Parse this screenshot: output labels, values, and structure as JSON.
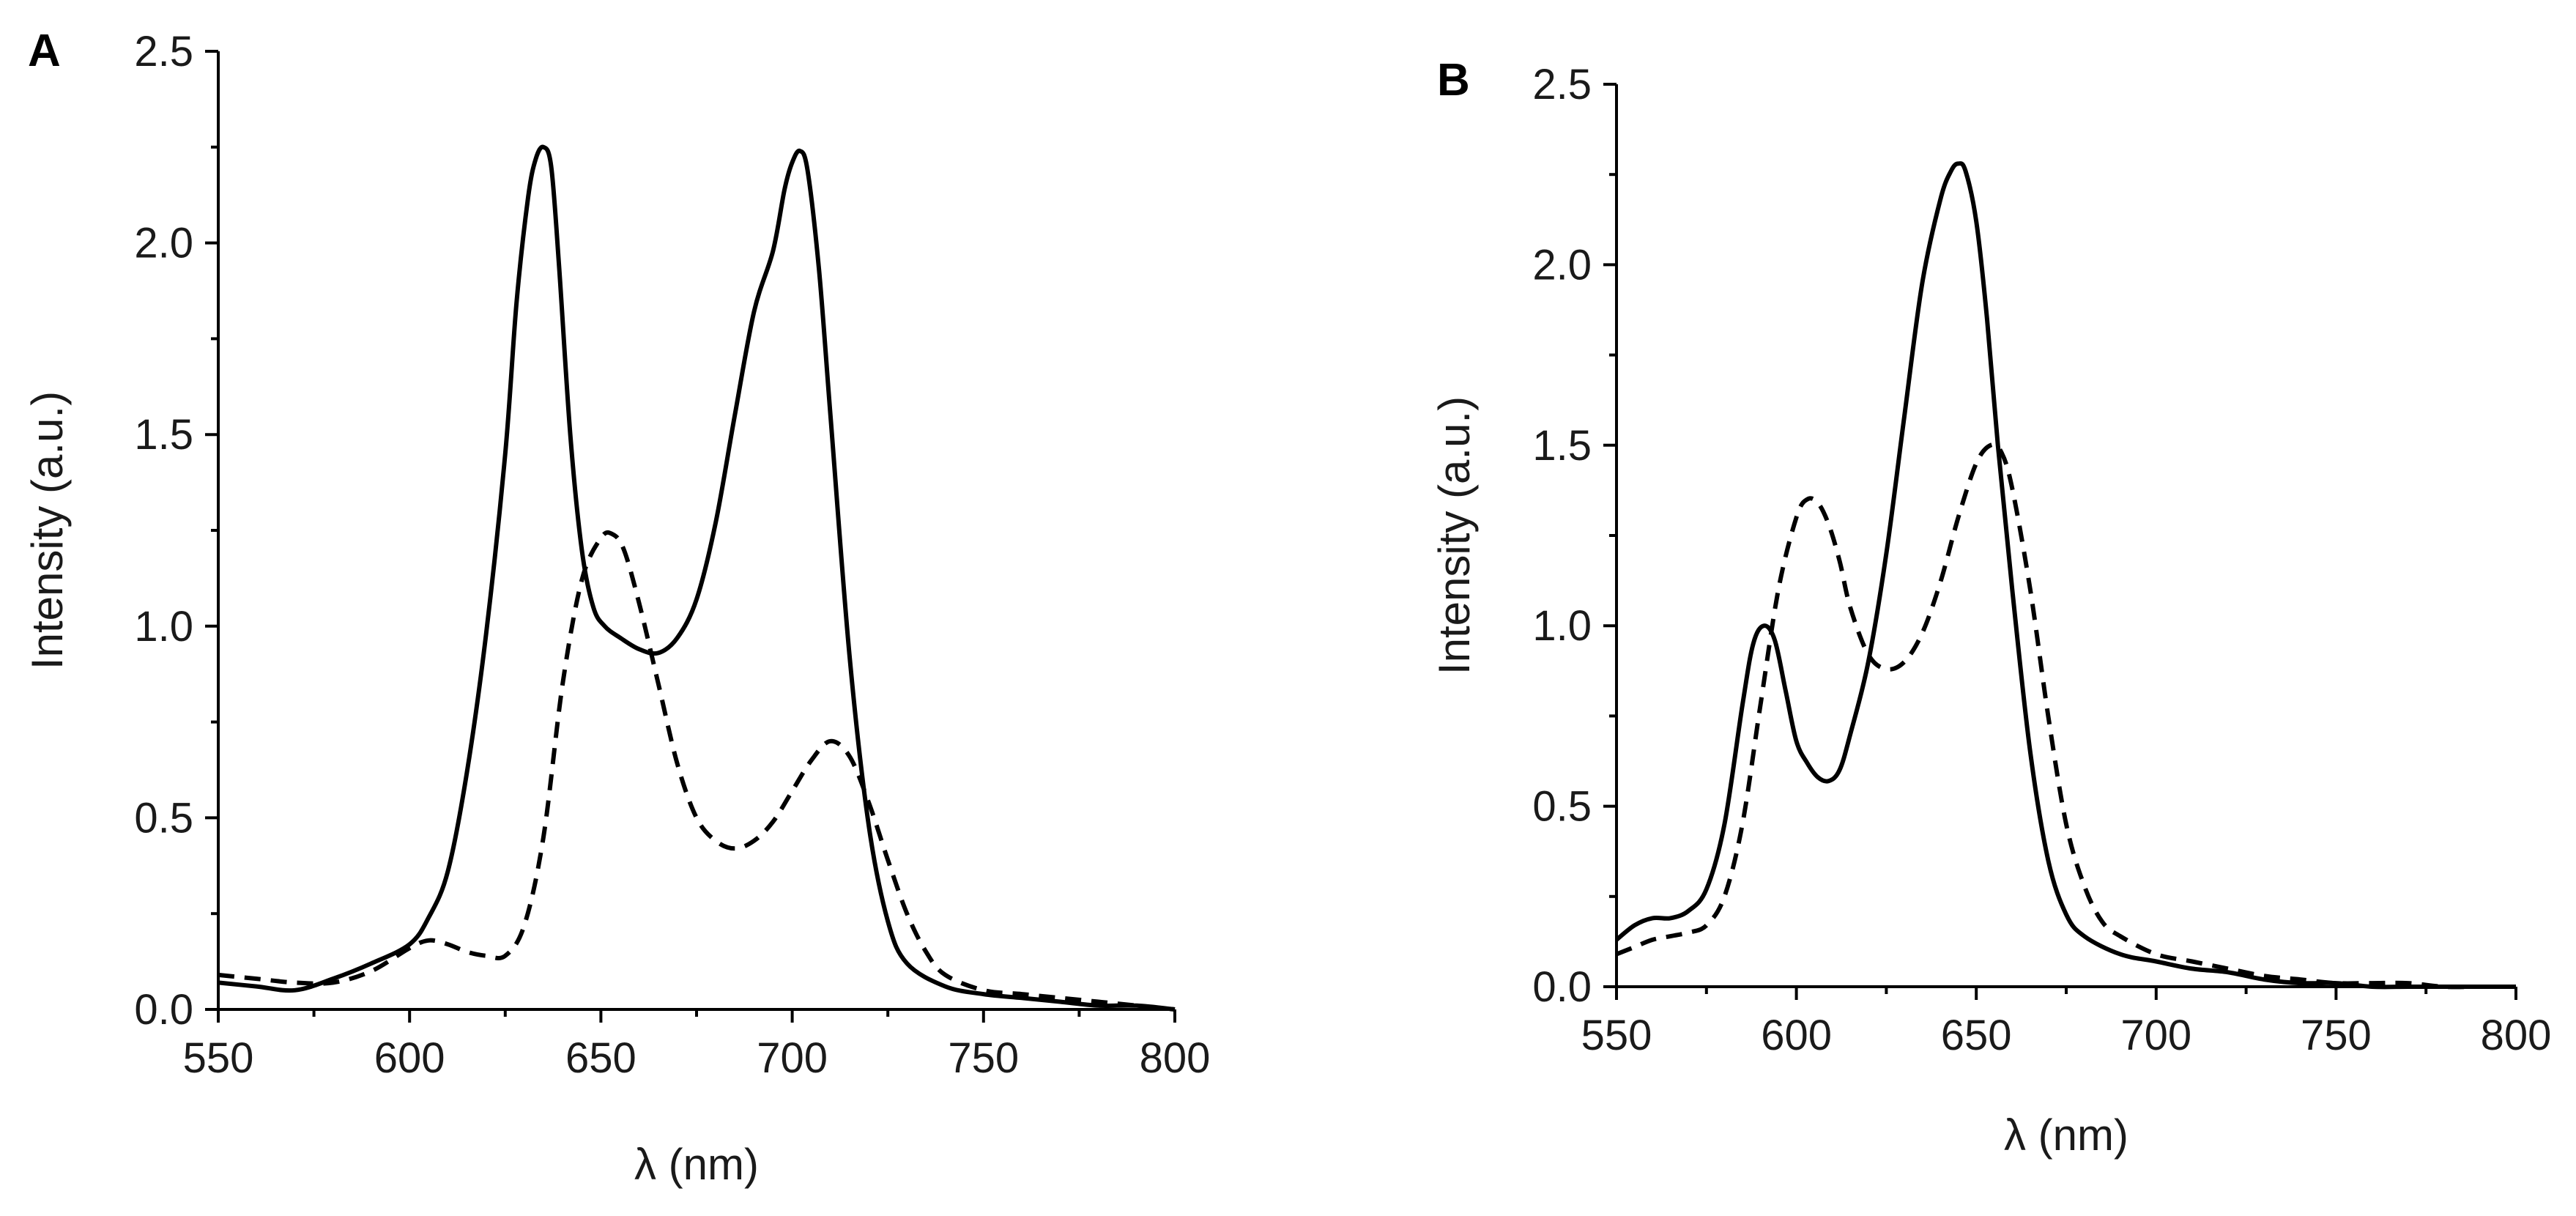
{
  "chart_data": [
    {
      "type": "line",
      "panel_label": "A",
      "xlabel": "λ (nm)",
      "ylabel": "Intensity (a.u.)",
      "xlim": [
        550,
        800
      ],
      "ylim": [
        0,
        2.5
      ],
      "x_ticks": [
        550,
        600,
        650,
        700,
        750,
        800
      ],
      "y_ticks": [
        "0.0",
        "0.5",
        "1.0",
        "1.5",
        "2.0",
        "2.5"
      ],
      "series": [
        {
          "name": "solid",
          "style": "solid",
          "x": [
            550,
            560,
            570,
            580,
            590,
            600,
            605,
            610,
            615,
            620,
            625,
            628,
            631,
            633,
            635,
            637,
            639,
            642,
            645,
            648,
            651,
            655,
            660,
            665,
            670,
            675,
            680,
            685,
            690,
            695,
            698,
            700,
            702,
            704,
            707,
            710,
            715,
            720,
            725,
            730,
            740,
            750,
            760,
            770,
            780,
            790,
            800
          ],
          "y": [
            0.07,
            0.06,
            0.05,
            0.08,
            0.12,
            0.17,
            0.24,
            0.36,
            0.62,
            0.98,
            1.45,
            1.85,
            2.12,
            2.22,
            2.25,
            2.2,
            1.95,
            1.5,
            1.2,
            1.05,
            1.0,
            0.97,
            0.94,
            0.93,
            0.97,
            1.07,
            1.27,
            1.55,
            1.82,
            1.98,
            2.14,
            2.21,
            2.24,
            2.19,
            1.93,
            1.55,
            0.92,
            0.48,
            0.23,
            0.12,
            0.06,
            0.04,
            0.03,
            0.02,
            0.01,
            0.01,
            0.0
          ]
        },
        {
          "name": "dashed",
          "style": "dashed",
          "x": [
            550,
            560,
            570,
            580,
            590,
            600,
            605,
            610,
            615,
            620,
            625,
            630,
            635,
            640,
            645,
            650,
            653,
            656,
            660,
            665,
            670,
            675,
            680,
            685,
            690,
            695,
            700,
            705,
            710,
            715,
            720,
            725,
            730,
            735,
            740,
            750,
            760,
            770,
            780,
            790,
            800
          ],
          "y": [
            0.09,
            0.08,
            0.07,
            0.07,
            0.1,
            0.16,
            0.18,
            0.17,
            0.15,
            0.14,
            0.14,
            0.22,
            0.45,
            0.85,
            1.12,
            1.23,
            1.24,
            1.2,
            1.06,
            0.85,
            0.64,
            0.5,
            0.44,
            0.42,
            0.44,
            0.49,
            0.57,
            0.65,
            0.7,
            0.66,
            0.54,
            0.39,
            0.25,
            0.15,
            0.09,
            0.05,
            0.04,
            0.03,
            0.02,
            0.01,
            0.0
          ]
        }
      ]
    },
    {
      "type": "line",
      "panel_label": "B",
      "xlabel": "λ (nm)",
      "ylabel": "Intensity (a.u.)",
      "xlim": [
        550,
        800
      ],
      "ylim": [
        0,
        2.5
      ],
      "x_ticks": [
        550,
        600,
        650,
        700,
        750,
        800
      ],
      "y_ticks": [
        "0.0",
        "0.5",
        "1.0",
        "1.5",
        "2.0",
        "2.5"
      ],
      "series": [
        {
          "name": "solid",
          "style": "solid",
          "x": [
            550,
            555,
            560,
            565,
            570,
            575,
            580,
            585,
            588,
            591,
            594,
            597,
            600,
            603,
            606,
            609,
            612,
            615,
            620,
            625,
            630,
            635,
            640,
            643,
            645,
            647,
            650,
            653,
            656,
            660,
            665,
            670,
            675,
            680,
            690,
            700,
            710,
            720,
            730,
            740,
            750,
            760,
            770,
            780,
            790,
            800
          ],
          "y": [
            0.13,
            0.17,
            0.19,
            0.19,
            0.21,
            0.27,
            0.45,
            0.78,
            0.95,
            1.0,
            0.96,
            0.82,
            0.68,
            0.62,
            0.58,
            0.57,
            0.6,
            0.7,
            0.9,
            1.2,
            1.58,
            1.95,
            2.18,
            2.26,
            2.28,
            2.26,
            2.12,
            1.85,
            1.5,
            1.1,
            0.65,
            0.35,
            0.2,
            0.14,
            0.09,
            0.07,
            0.05,
            0.04,
            0.02,
            0.01,
            0.01,
            0.0,
            0.0,
            0.0,
            0.0,
            0.0
          ]
        },
        {
          "name": "dashed",
          "style": "dashed",
          "x": [
            550,
            555,
            560,
            565,
            570,
            575,
            580,
            585,
            590,
            595,
            600,
            603,
            606,
            609,
            612,
            615,
            620,
            625,
            630,
            635,
            640,
            645,
            650,
            654,
            657,
            660,
            665,
            670,
            675,
            680,
            685,
            690,
            700,
            710,
            720,
            730,
            740,
            750,
            760,
            770,
            780,
            790,
            800
          ],
          "y": [
            0.09,
            0.11,
            0.13,
            0.14,
            0.15,
            0.17,
            0.25,
            0.45,
            0.78,
            1.1,
            1.3,
            1.35,
            1.34,
            1.28,
            1.18,
            1.05,
            0.92,
            0.88,
            0.9,
            0.98,
            1.12,
            1.3,
            1.45,
            1.5,
            1.48,
            1.38,
            1.1,
            0.75,
            0.45,
            0.28,
            0.18,
            0.14,
            0.09,
            0.07,
            0.05,
            0.03,
            0.02,
            0.01,
            0.01,
            0.01,
            0.0,
            0.0,
            0.0
          ]
        }
      ]
    }
  ]
}
